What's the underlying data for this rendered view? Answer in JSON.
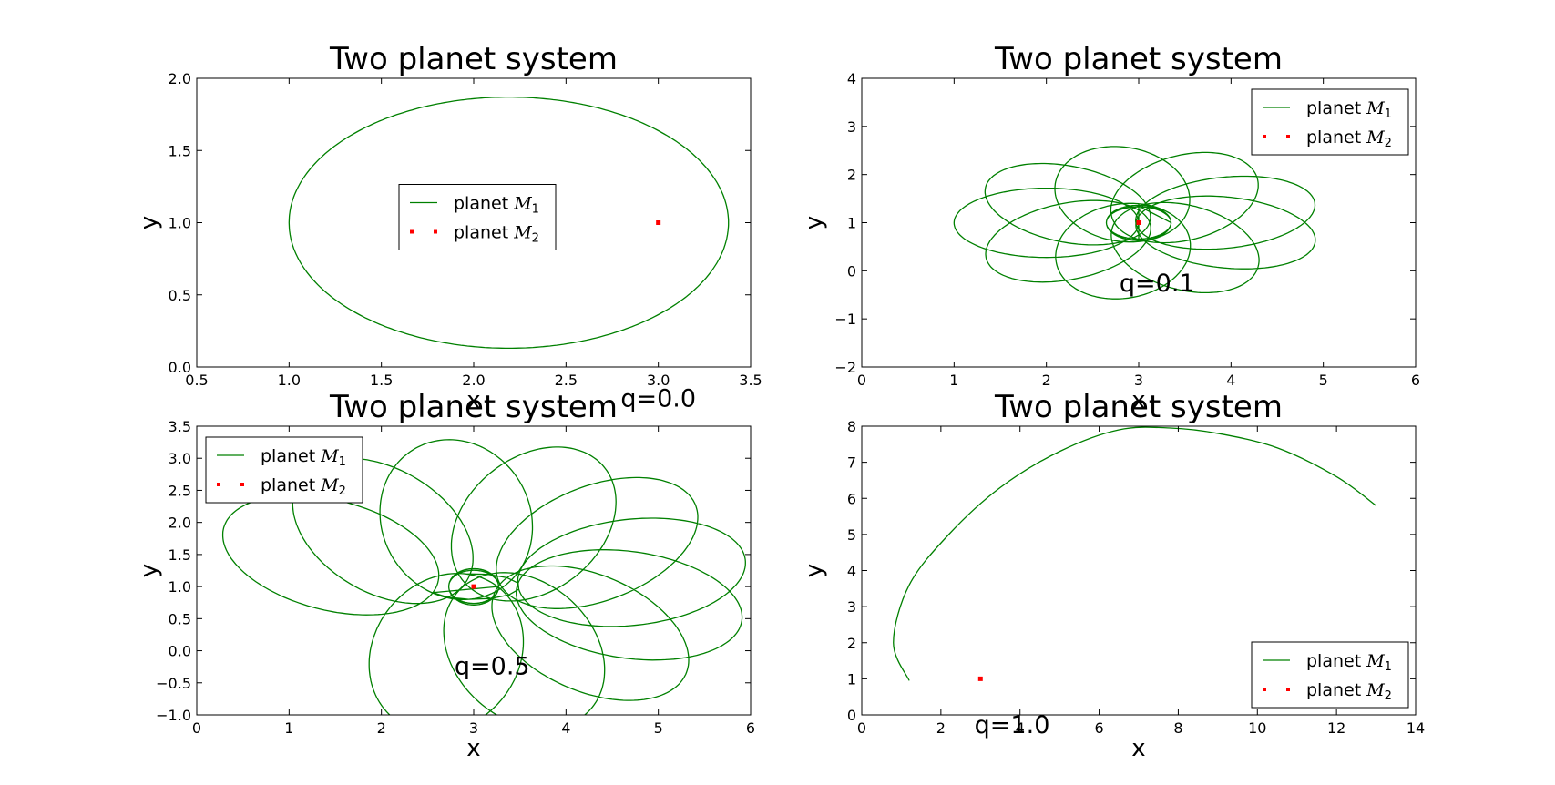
{
  "figure": {
    "background": "#ffffff"
  },
  "colors": {
    "orbit": "#008000",
    "star": "#ff0000",
    "axes": "#000000"
  },
  "chart_data": [
    {
      "type": "line",
      "title": "Two planet system",
      "xlabel": "x",
      "ylabel": "y",
      "xlim": [
        0.5,
        3.5
      ],
      "ylim": [
        0.0,
        2.0
      ],
      "xticks": [
        "0.5",
        "1.0",
        "1.5",
        "2.0",
        "2.5",
        "3.0",
        "3.5"
      ],
      "yticks": [
        "0.0",
        "0.5",
        "1.0",
        "1.5",
        "2.0"
      ],
      "annotation": {
        "text": "q=0.0",
        "x": 3.0,
        "y": -0.2
      },
      "legend": {
        "loc": "center",
        "entries": [
          {
            "label": "planet ",
            "symbol": "M",
            "sub": "1",
            "marker": "line"
          },
          {
            "label": "planet ",
            "symbol": "M",
            "sub": "2",
            "marker": "dots"
          }
        ]
      },
      "series": [
        {
          "kind": "ellipse",
          "center": [
            2.19,
            1.0
          ],
          "a": 1.19,
          "b": 0.87
        },
        {
          "kind": "point",
          "x": 3.0,
          "y": 1.0
        }
      ]
    },
    {
      "type": "line",
      "title": "Two planet system",
      "xlabel": "x",
      "ylabel": "y",
      "xlim": [
        0,
        6
      ],
      "ylim": [
        -2,
        4
      ],
      "xticks": [
        "0",
        "1",
        "2",
        "3",
        "4",
        "5",
        "6"
      ],
      "yticks": [
        "−2",
        "−1",
        "0",
        "1",
        "2",
        "3",
        "4"
      ],
      "annotation": {
        "text": "q=0.1",
        "x": 3.2,
        "y": -0.2
      },
      "legend": {
        "loc": "upper right",
        "entries": [
          {
            "label": "planet ",
            "symbol": "M",
            "sub": "1",
            "marker": "line"
          },
          {
            "label": "planet ",
            "symbol": "M",
            "sub": "2",
            "marker": "dots"
          }
        ]
      },
      "series": [
        {
          "kind": "rosette",
          "center": [
            3.0,
            1.0
          ],
          "a": 1.0,
          "b": 0.72,
          "d": 1.0,
          "rot_deg": 40,
          "loops": 11,
          "start": 1.4,
          "inner_a": 0.35,
          "inner_b": 0.35
        },
        {
          "kind": "point",
          "x": 3.0,
          "y": 1.0
        }
      ]
    },
    {
      "type": "line",
      "title": "Two planet system",
      "xlabel": "x",
      "ylabel": "y",
      "xlim": [
        0,
        6
      ],
      "ylim": [
        -1.0,
        3.5
      ],
      "xticks": [
        "0",
        "1",
        "2",
        "3",
        "4",
        "5",
        "6"
      ],
      "yticks": [
        "−1.0",
        "−0.5",
        "0.0",
        "0.5",
        "1.0",
        "1.5",
        "2.0",
        "2.5",
        "3.0",
        "3.5"
      ],
      "annotation": {
        "text": "q=0.5",
        "x": 3.2,
        "y": -0.2
      },
      "legend": {
        "loc": "upper left",
        "entries": [
          {
            "label": "planet ",
            "symbol": "M",
            "sub": "1",
            "marker": "line"
          },
          {
            "label": "planet ",
            "symbol": "M",
            "sub": "2",
            "marker": "dots"
          }
        ]
      },
      "series": [
        {
          "kind": "rosette",
          "center": [
            3.0,
            1.0
          ],
          "a": 1.25,
          "b": 0.82,
          "d": 1.75,
          "rot_deg": 28,
          "loops": 10,
          "start": 1.4,
          "inner_a": 0.27,
          "inner_b": 0.27
        },
        {
          "kind": "point",
          "x": 3.0,
          "y": 1.0
        }
      ]
    },
    {
      "type": "line",
      "title": "Two planet system",
      "xlabel": "x",
      "ylabel": "y",
      "xlim": [
        0,
        14
      ],
      "ylim": [
        0,
        8
      ],
      "xticks": [
        "0",
        "2",
        "4",
        "6",
        "8",
        "10",
        "12",
        "14"
      ],
      "yticks": [
        "0",
        "1",
        "2",
        "3",
        "4",
        "5",
        "6",
        "7",
        "8"
      ],
      "annotation": {
        "text": "q=1.0",
        "x": 3.8,
        "y": -0.2
      },
      "legend": {
        "loc": "lower right",
        "entries": [
          {
            "label": "planet ",
            "symbol": "M",
            "sub": "1",
            "marker": "line"
          },
          {
            "label": "planet ",
            "symbol": "M",
            "sub": "2",
            "marker": "dots"
          }
        ]
      },
      "series": [
        {
          "kind": "path",
          "points": [
            [
              1.2,
              0.95
            ],
            [
              0.8,
              2.0
            ],
            [
              1.2,
              3.6
            ],
            [
              2.2,
              5.0
            ],
            [
              3.5,
              6.3
            ],
            [
              5.0,
              7.3
            ],
            [
              6.5,
              7.9
            ],
            [
              7.8,
              7.95
            ],
            [
              9.0,
              7.8
            ],
            [
              10.5,
              7.4
            ],
            [
              12.0,
              6.6
            ],
            [
              13.0,
              5.8
            ]
          ]
        },
        {
          "kind": "point",
          "x": 3.0,
          "y": 1.0
        }
      ]
    }
  ]
}
